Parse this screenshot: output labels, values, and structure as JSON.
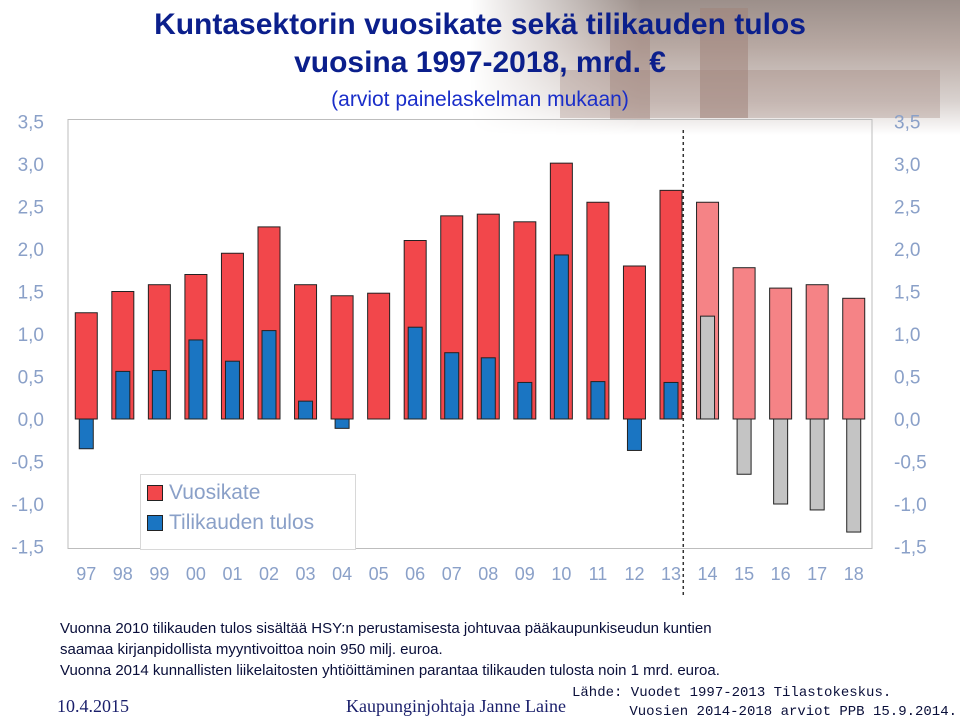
{
  "title_line1": "Kuntasektorin vuosikate sekä tilikauden tulos",
  "title_line2": "vuosina 1997-2018, mrd. €",
  "subtitle": "(arviot painelaskelman mukaan)",
  "chart_data": {
    "type": "bar",
    "categories": [
      "97",
      "98",
      "99",
      "00",
      "01",
      "02",
      "03",
      "04",
      "05",
      "06",
      "07",
      "08",
      "09",
      "10",
      "11",
      "12",
      "13",
      "14",
      "15",
      "16",
      "17",
      "18"
    ],
    "ylim": [
      -1.5,
      3.5
    ],
    "yticks": [
      "-1,5",
      "-1,0",
      "-0,5",
      "0,0",
      "0,5",
      "1,0",
      "1,5",
      "2,0",
      "2,5",
      "3,0",
      "3,5"
    ],
    "series": [
      {
        "name": "Vuosikate",
        "values": [
          1.25,
          1.5,
          1.58,
          1.7,
          1.95,
          2.26,
          1.58,
          1.45,
          1.48,
          2.1,
          2.39,
          2.41,
          2.32,
          3.01,
          2.55,
          1.8,
          2.69,
          2.55,
          1.78,
          1.54,
          1.58,
          1.42
        ]
      },
      {
        "name": "Tilikauden tulos",
        "values": [
          -0.35,
          0.56,
          0.57,
          0.93,
          0.68,
          1.04,
          0.21,
          -0.11,
          0.0,
          1.08,
          0.78,
          0.72,
          0.43,
          1.93,
          0.44,
          -0.37,
          0.43,
          1.21,
          -0.65,
          -1.0,
          -1.07,
          -1.33
        ]
      }
    ],
    "forecast_from": "14",
    "colors": {
      "vuosikate": "#f2474b",
      "vuosikate_forecast": "#f58386",
      "tulos": "#1a75c2",
      "tulos_forecast": "#c4c4c4",
      "axis_labels": "#8aa0c8"
    },
    "legend": "bottom-left",
    "grid": false
  },
  "notes": [
    "Vuonna 2010 tilikauden tulos sisältää HSY:n perustamisesta johtuvaa pääkaupunkiseudun kuntien",
    "saamaa kirjanpidollista myyntivoittoa noin 950 milj. euroa.",
    "Vuonna 2014 kunnallisten liikelaitosten yhtiöittäminen parantaa tilikauden tulosta noin 1 mrd. euroa."
  ],
  "footer": {
    "date": "10.4.2015",
    "author": "Kaupunginjohtaja Janne Laine"
  },
  "source": {
    "line1": "Lähde: Vuodet 1997-2013 Tilastokeskus.",
    "line2": "Vuosien 2014-2018 arviot PPB 15.9.2014."
  }
}
